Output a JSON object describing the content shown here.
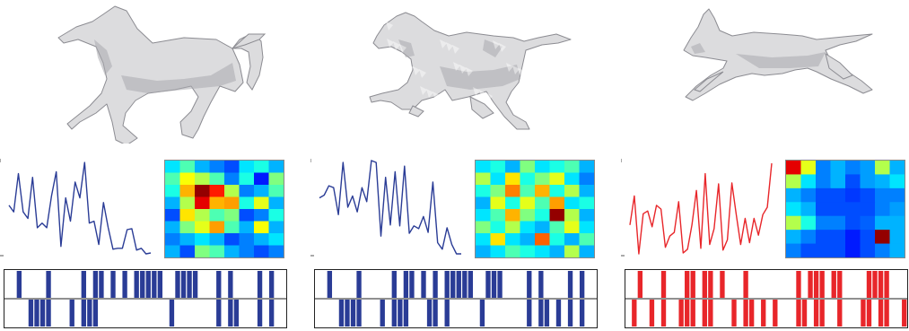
{
  "colors": {
    "blue": "#2a3c96",
    "red": "#e8262a",
    "mesh_fill": "#dcdcde",
    "mesh_shadow": "#a9a9ae",
    "mesh_edge": "#8c8c92",
    "grid_border": "#222222"
  },
  "panels": [
    {
      "id": "original",
      "mesh_variant": "smooth-galloping-horse",
      "color": "blue",
      "line_values": [
        0.52,
        0.45,
        0.86,
        0.45,
        0.38,
        0.82,
        0.28,
        0.33,
        0.28,
        0.62,
        0.88,
        0.08,
        0.6,
        0.35,
        0.77,
        0.6,
        0.98,
        0.33,
        0.35,
        0.1,
        0.55,
        0.28,
        0.05,
        0.06,
        0.06,
        0.26,
        0.27,
        0.04,
        0.06,
        0.0,
        0.01
      ],
      "heatmap": [
        [
          0.35,
          0.45,
          0.3,
          0.25,
          0.2,
          0.35,
          0.4,
          0.3
        ],
        [
          0.45,
          0.62,
          0.55,
          0.45,
          0.25,
          0.4,
          0.15,
          0.5
        ],
        [
          0.4,
          0.7,
          0.98,
          0.85,
          0.55,
          0.25,
          0.3,
          0.45
        ],
        [
          0.3,
          0.55,
          0.9,
          0.7,
          0.72,
          0.4,
          0.6,
          0.3
        ],
        [
          0.2,
          0.65,
          0.55,
          0.45,
          0.5,
          0.2,
          0.25,
          0.4
        ],
        [
          0.3,
          0.5,
          0.6,
          0.72,
          0.45,
          0.3,
          0.62,
          0.3
        ],
        [
          0.25,
          0.3,
          0.35,
          0.3,
          0.2,
          0.25,
          0.3,
          0.35
        ],
        [
          0.3,
          0.2,
          0.5,
          0.45,
          0.3,
          0.25,
          0.2,
          0.25
        ]
      ],
      "code_top": [
        0,
        0,
        1,
        0,
        0,
        0,
        0,
        1,
        0,
        0,
        0,
        0,
        0,
        1,
        0,
        1,
        1,
        0,
        1,
        0,
        1,
        0,
        1,
        1,
        1,
        1,
        1,
        0,
        0,
        1,
        1,
        1,
        1,
        0,
        0,
        0,
        1,
        0,
        1,
        0,
        0,
        0,
        0,
        1,
        0,
        1,
        0,
        0
      ],
      "code_bottom": [
        0,
        0,
        0,
        0,
        1,
        1,
        1,
        1,
        0,
        0,
        0,
        1,
        0,
        1,
        1,
        1,
        0,
        0,
        0,
        0,
        0,
        0,
        0,
        0,
        0,
        0,
        0,
        0,
        1,
        0,
        0,
        0,
        0,
        0,
        0,
        0,
        1,
        0,
        1,
        1,
        0,
        0,
        0,
        1,
        0,
        1,
        0,
        0
      ]
    },
    {
      "id": "noisy",
      "mesh_variant": "noisy-galloping-horse",
      "color": "blue",
      "line_values": [
        0.6,
        0.63,
        0.73,
        0.71,
        0.42,
        0.98,
        0.5,
        0.62,
        0.45,
        0.71,
        0.56,
        1.0,
        0.98,
        0.19,
        0.82,
        0.31,
        0.88,
        0.3,
        0.94,
        0.22,
        0.3,
        0.27,
        0.4,
        0.23,
        0.77,
        0.12,
        0.05,
        0.28,
        0.1,
        0.0,
        0.0
      ],
      "heatmap": [
        [
          0.35,
          0.4,
          0.3,
          0.5,
          0.35,
          0.4,
          0.45,
          0.3
        ],
        [
          0.55,
          0.35,
          0.65,
          0.4,
          0.5,
          0.6,
          0.35,
          0.25
        ],
        [
          0.4,
          0.5,
          0.75,
          0.45,
          0.7,
          0.4,
          0.55,
          0.3
        ],
        [
          0.3,
          0.6,
          0.4,
          0.6,
          0.45,
          0.72,
          0.35,
          0.4
        ],
        [
          0.35,
          0.45,
          0.7,
          0.5,
          0.4,
          0.98,
          0.55,
          0.3
        ],
        [
          0.5,
          0.4,
          0.55,
          0.35,
          0.3,
          0.45,
          0.6,
          0.35
        ],
        [
          0.35,
          0.65,
          0.35,
          0.3,
          0.78,
          0.4,
          0.3,
          0.45
        ],
        [
          0.3,
          0.35,
          0.45,
          0.4,
          0.35,
          0.3,
          0.55,
          0.3
        ]
      ],
      "code_top": [
        0,
        0,
        1,
        0,
        0,
        0,
        0,
        1,
        0,
        0,
        0,
        0,
        0,
        1,
        0,
        1,
        1,
        0,
        1,
        0,
        1,
        0,
        1,
        1,
        1,
        1,
        1,
        0,
        0,
        1,
        1,
        1,
        0,
        0,
        0,
        0,
        1,
        0,
        1,
        0,
        0,
        0,
        0,
        1,
        0,
        1,
        0,
        0
      ],
      "code_bottom": [
        0,
        0,
        0,
        0,
        1,
        1,
        1,
        1,
        0,
        0,
        0,
        1,
        0,
        1,
        1,
        1,
        0,
        0,
        0,
        1,
        1,
        0,
        1,
        0,
        0,
        0,
        0,
        0,
        1,
        0,
        0,
        0,
        0,
        0,
        0,
        0,
        1,
        0,
        1,
        1,
        0,
        1,
        0,
        1,
        0,
        1,
        0,
        0
      ]
    },
    {
      "id": "other",
      "mesh_variant": "leaping-dog",
      "color": "red",
      "line_values": [
        0.31,
        0.62,
        0.0,
        0.43,
        0.46,
        0.29,
        0.52,
        0.48,
        0.07,
        0.19,
        0.23,
        0.56,
        0.01,
        0.05,
        0.31,
        0.68,
        0.06,
        0.86,
        0.1,
        0.27,
        0.75,
        0.04,
        0.15,
        0.76,
        0.42,
        0.1,
        0.38,
        0.12,
        0.38,
        0.2,
        0.42,
        0.5,
        0.97
      ],
      "heatmap": [
        [
          0.9,
          0.6,
          0.25,
          0.3,
          0.25,
          0.28,
          0.55,
          0.3
        ],
        [
          0.55,
          0.35,
          0.25,
          0.3,
          0.2,
          0.28,
          0.3,
          0.35
        ],
        [
          0.3,
          0.25,
          0.2,
          0.2,
          0.18,
          0.2,
          0.25,
          0.25
        ],
        [
          0.35,
          0.3,
          0.2,
          0.2,
          0.2,
          0.2,
          0.25,
          0.28
        ],
        [
          0.55,
          0.4,
          0.25,
          0.25,
          0.2,
          0.22,
          0.3,
          0.3
        ],
        [
          0.3,
          0.25,
          0.2,
          0.2,
          0.15,
          0.2,
          0.98,
          0.3
        ],
        [
          0.25,
          0.2,
          0.2,
          0.2,
          0.15,
          0.2,
          0.25,
          0.3
        ]
      ],
      "code_top": [
        0,
        0,
        1,
        0,
        0,
        0,
        1,
        0,
        0,
        0,
        1,
        1,
        0,
        1,
        1,
        0,
        1,
        0,
        0,
        0,
        1,
        0,
        0,
        0,
        0,
        0,
        0,
        0,
        0,
        1,
        0,
        1,
        1,
        1,
        0,
        1,
        1,
        0,
        0,
        0,
        0,
        1,
        1,
        1,
        1,
        0,
        0,
        0
      ],
      "code_bottom": [
        0,
        1,
        0,
        0,
        1,
        0,
        1,
        0,
        0,
        1,
        1,
        1,
        0,
        1,
        1,
        0,
        0,
        0,
        1,
        0,
        1,
        1,
        0,
        1,
        0,
        1,
        0,
        0,
        0,
        1,
        1,
        0,
        1,
        1,
        0,
        0,
        1,
        0,
        0,
        0,
        1,
        1,
        0,
        1,
        1,
        0,
        0,
        1
      ]
    }
  ]
}
